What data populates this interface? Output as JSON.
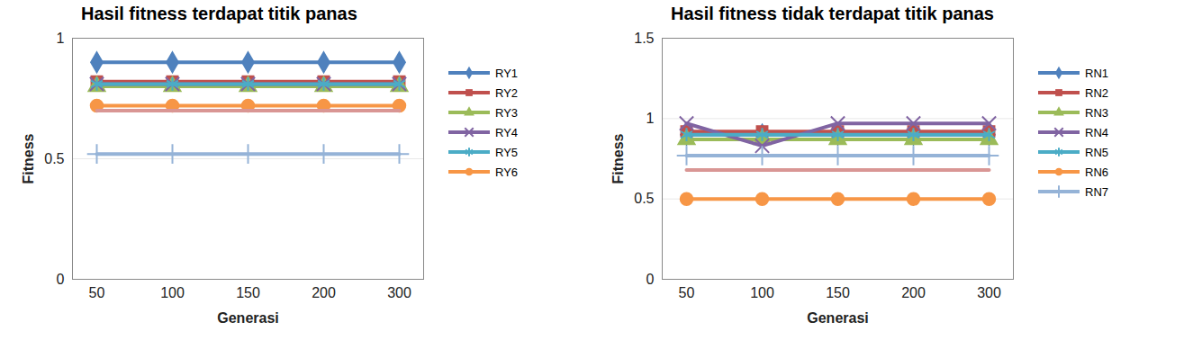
{
  "chart_data": [
    {
      "type": "line",
      "title": "Hasil fitness terdapat titik panas",
      "x_label": "Generasi",
      "y_label": "Fitness",
      "categories": [
        "50",
        "100",
        "150",
        "200",
        "300"
      ],
      "ylim": [
        0,
        1
      ],
      "yticks": [
        0,
        0.5,
        1
      ],
      "grid": true,
      "legend": "right",
      "series": [
        {
          "name": "RY1",
          "color": "#4F81BD",
          "marker": "diamond",
          "line_style": "solid",
          "values": [
            0.9,
            0.9,
            0.9,
            0.9,
            0.9
          ]
        },
        {
          "name": "RY2",
          "color": "#C0504D",
          "marker": "square",
          "line_style": "solid",
          "values": [
            0.82,
            0.82,
            0.82,
            0.82,
            0.82
          ]
        },
        {
          "name": "RY3",
          "color": "#9BBB59",
          "marker": "triangle",
          "line_style": "solid",
          "values": [
            0.8,
            0.8,
            0.8,
            0.8,
            0.8
          ]
        },
        {
          "name": "RY4",
          "color": "#8064A2",
          "marker": "times",
          "line_style": "solid",
          "values": [
            0.81,
            0.81,
            0.81,
            0.81,
            0.81
          ]
        },
        {
          "name": "RY5",
          "color": "#4BACC6",
          "marker": "asterisk",
          "line_style": "solid",
          "values": [
            0.81,
            0.81,
            0.81,
            0.81,
            0.81
          ]
        },
        {
          "name": "RY6",
          "color": "#F79646",
          "marker": "circle",
          "line_style": "solid",
          "values": [
            0.72,
            0.72,
            0.72,
            0.72,
            0.72
          ]
        },
        {
          "name": null,
          "color": "#D99694",
          "marker": "none",
          "line_style": "solid",
          "values": [
            0.7,
            0.7,
            0.7,
            0.7,
            0.7
          ]
        },
        {
          "name": null,
          "color": "#95B3D7",
          "marker": "plus",
          "line_style": "solid",
          "values": [
            0.52,
            0.52,
            0.52,
            0.52,
            0.52
          ]
        }
      ]
    },
    {
      "type": "line",
      "title": "Hasil fitness tidak terdapat titik panas",
      "x_label": "Generasi",
      "y_label": "Fitness",
      "categories": [
        "50",
        "100",
        "150",
        "200",
        "300"
      ],
      "ylim": [
        0,
        1.5
      ],
      "yticks": [
        0,
        0.5,
        1,
        1.5
      ],
      "grid": true,
      "legend": "right",
      "series": [
        {
          "name": "RN1",
          "color": "#4F81BD",
          "marker": "diamond",
          "line_style": "solid",
          "values": [
            0.9,
            0.9,
            0.9,
            0.9,
            0.9
          ]
        },
        {
          "name": "RN2",
          "color": "#C0504D",
          "marker": "square",
          "line_style": "solid",
          "values": [
            0.92,
            0.92,
            0.92,
            0.92,
            0.92
          ]
        },
        {
          "name": "RN3",
          "color": "#9BBB59",
          "marker": "triangle",
          "line_style": "solid",
          "values": [
            0.87,
            0.87,
            0.87,
            0.87,
            0.87
          ]
        },
        {
          "name": "RN4",
          "color": "#8064A2",
          "marker": "times",
          "line_style": "solid",
          "values": [
            0.97,
            0.83,
            0.97,
            0.97,
            0.97
          ]
        },
        {
          "name": "RN5",
          "color": "#4BACC6",
          "marker": "asterisk",
          "line_style": "solid",
          "values": [
            0.9,
            0.9,
            0.9,
            0.9,
            0.9
          ]
        },
        {
          "name": "RN6",
          "color": "#F79646",
          "marker": "circle",
          "line_style": "solid",
          "values": [
            0.5,
            0.5,
            0.5,
            0.5,
            0.5
          ]
        },
        {
          "name": "RN7",
          "color": "#95B3D7",
          "marker": "plus",
          "line_style": "solid",
          "values": [
            0.77,
            0.77,
            0.77,
            0.77,
            0.77
          ]
        },
        {
          "name": null,
          "color": "#D99694",
          "marker": "none",
          "line_style": "solid",
          "values": [
            0.68,
            0.68,
            0.68,
            0.68,
            0.68
          ]
        }
      ]
    }
  ]
}
